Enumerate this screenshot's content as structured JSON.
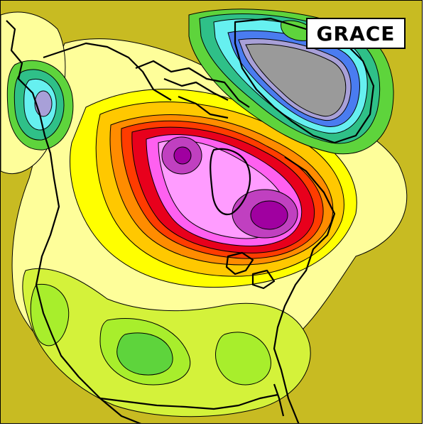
{
  "map": {
    "label": "GRACE",
    "palette": {
      "background_olive": "#c8bb22",
      "pale_yellow": "#fefe9a",
      "yellow": "#ffff00",
      "yellow_green": "#d4f23a",
      "light_green": "#a8ee2c",
      "green": "#5ed43c",
      "teal_green": "#2fc088",
      "cyan": "#66f0f0",
      "blue": "#4a7cf0",
      "violet": "#7a3aa8",
      "lavender": "#a8a0d8",
      "grey": "#9a9a9a",
      "orange_yellow": "#ffc800",
      "orange": "#ff8c00",
      "red_orange": "#ff3c00",
      "red": "#e8001c",
      "magenta": "#ff60f0",
      "pink": "#ff9cff",
      "purple": "#c040c0",
      "dark_purple": "#a000a0",
      "coastline": "#000000"
    }
  }
}
